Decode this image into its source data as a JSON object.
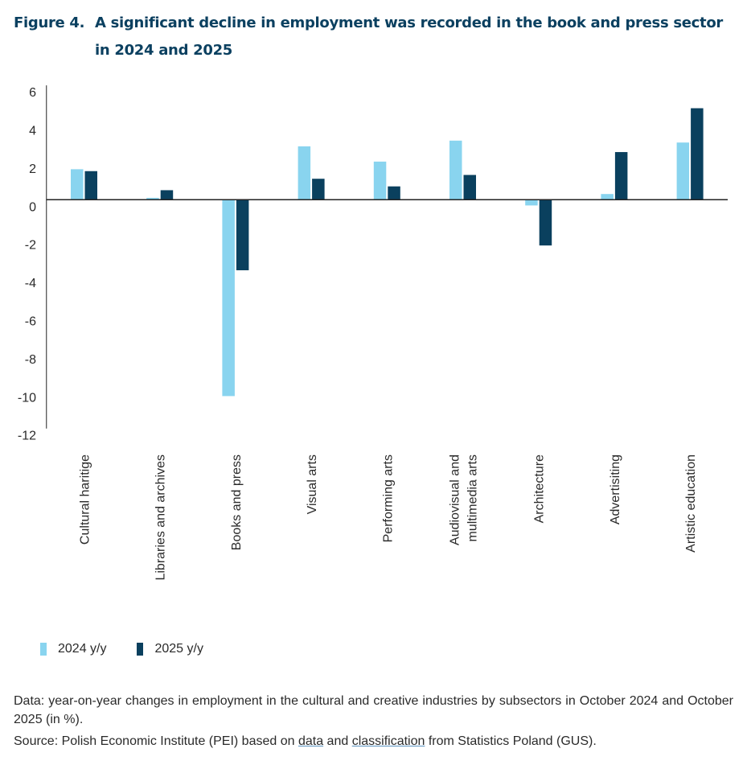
{
  "title": {
    "number": "Figure 4.",
    "text": "A significant decline in employment was recorded in the book and press sector in 2024 and 2025"
  },
  "legend": {
    "items": [
      {
        "label": "2024 y/y",
        "color": "#89d4ef"
      },
      {
        "label": "2025 y/y",
        "color": "#0a405e"
      }
    ]
  },
  "footer": {
    "data_note": "Data: year-on-year changes in employment in the cultural and creative industries by subsectors in October 2024 and October 2025 (in %).",
    "source_prefix": "Source: Polish Economic Institute (PEI) based on ",
    "source_link1": "data",
    "source_mid": " and ",
    "source_link2": "classification",
    "source_suffix": " from Statistics Poland (GUS)."
  },
  "chart_data": {
    "type": "bar",
    "title": "A significant decline in employment was recorded in the book and press sector in 2024 and 2025",
    "xlabel": "",
    "ylabel": "",
    "ylim": [
      -12,
      6
    ],
    "yticks": [
      6,
      4,
      2,
      0,
      -2,
      -4,
      -6,
      -8,
      -10,
      -12
    ],
    "grid": false,
    "legend_position": "bottom-left",
    "categories": [
      [
        "Cultural haritige"
      ],
      [
        "Libraries and archives"
      ],
      [
        "Books and press"
      ],
      [
        "Visual arts"
      ],
      [
        "Performing arts"
      ],
      [
        "Audiovisual and",
        "multimedia arts"
      ],
      [
        "Architecture"
      ],
      [
        "Advertisiting"
      ],
      [
        "Artistic education"
      ]
    ],
    "series": [
      {
        "name": "2024 y/y",
        "color": "#89d4ef",
        "values": [
          1.6,
          0.1,
          -10.3,
          2.8,
          2.0,
          3.1,
          -0.3,
          0.3,
          3.0
        ]
      },
      {
        "name": "2025 y/y",
        "color": "#0a405e",
        "values": [
          1.5,
          0.5,
          -3.7,
          1.1,
          0.7,
          1.3,
          -2.4,
          2.5,
          4.8
        ]
      }
    ]
  }
}
